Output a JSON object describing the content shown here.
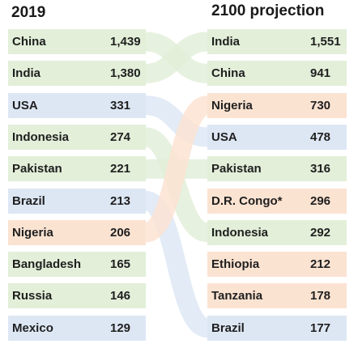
{
  "chart_data": {
    "type": "table",
    "left": {
      "title": "2019",
      "rows": [
        {
          "country": "China",
          "value": "1,439",
          "color": "#e3efd9"
        },
        {
          "country": "India",
          "value": "1,380",
          "color": "#e3efd9"
        },
        {
          "country": "USA",
          "value": "331",
          "color": "#dde7f4"
        },
        {
          "country": "Indonesia",
          "value": "274",
          "color": "#e3efd9"
        },
        {
          "country": "Pakistan",
          "value": "221",
          "color": "#e3efd9"
        },
        {
          "country": "Brazil",
          "value": "213",
          "color": "#dde7f4"
        },
        {
          "country": "Nigeria",
          "value": "206",
          "color": "#fbe3d2"
        },
        {
          "country": "Bangladesh",
          "value": "165",
          "color": "#e3efd9"
        },
        {
          "country": "Russia",
          "value": "146",
          "color": "#e3efd9"
        },
        {
          "country": "Mexico",
          "value": "129",
          "color": "#dde7f4"
        }
      ]
    },
    "right": {
      "title": "2100 projection",
      "rows": [
        {
          "country": "India",
          "value": "1,551",
          "color": "#e3efd9"
        },
        {
          "country": "China",
          "value": "941",
          "color": "#e3efd9"
        },
        {
          "country": "Nigeria",
          "value": "730",
          "color": "#fbe3d2"
        },
        {
          "country": "USA",
          "value": "478",
          "color": "#dde7f4"
        },
        {
          "country": "Pakistan",
          "value": "316",
          "color": "#e3efd9"
        },
        {
          "country": "D.R. Congo*",
          "value": "296",
          "color": "#fbe3d2"
        },
        {
          "country": "Indonesia",
          "value": "292",
          "color": "#e3efd9"
        },
        {
          "country": "Ethiopia",
          "value": "212",
          "color": "#fbe3d2"
        },
        {
          "country": "Tanzania",
          "value": "178",
          "color": "#fbe3d2"
        },
        {
          "country": "Brazil",
          "value": "177",
          "color": "#dde7f4"
        }
      ]
    },
    "connectors": [
      {
        "from": "China",
        "color": "#e3efd9"
      },
      {
        "from": "India",
        "color": "#e3efd9"
      },
      {
        "from": "USA",
        "color": "#dde7f4"
      },
      {
        "from": "Indonesia",
        "color": "#e3efd9"
      },
      {
        "from": "Pakistan",
        "color": "#e3efd9"
      },
      {
        "from": "Brazil",
        "color": "#dde7f4"
      },
      {
        "from": "Nigeria",
        "color": "#fbe3d2"
      }
    ]
  }
}
